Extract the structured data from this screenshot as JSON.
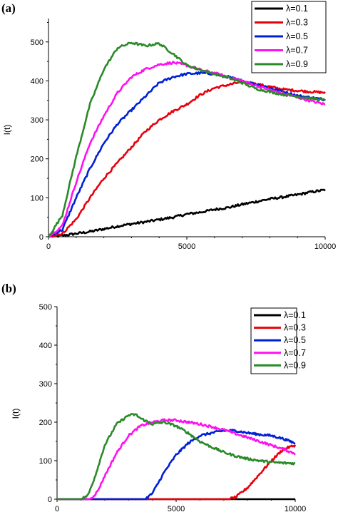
{
  "chart_data": [
    {
      "panel_label": "(a)",
      "type": "line",
      "ylabel": "I(t)",
      "xlim": [
        0,
        10000
      ],
      "ylim": [
        0,
        560
      ],
      "x_ticks": [
        0,
        5000,
        10000
      ],
      "y_ticks": [
        0,
        100,
        200,
        300,
        400,
        500
      ],
      "legend_position": "top-right",
      "series": [
        {
          "name": "λ=0.1",
          "color": "#000000",
          "x": [
            0,
            500,
            1000,
            1500,
            2000,
            2500,
            3000,
            3500,
            4000,
            4500,
            5000,
            5500,
            6000,
            6500,
            7000,
            7500,
            8000,
            8500,
            9000,
            9500,
            10000
          ],
          "y": [
            0,
            3,
            8,
            13,
            20,
            27,
            33,
            38,
            44,
            50,
            58,
            63,
            70,
            75,
            83,
            90,
            97,
            102,
            108,
            115,
            120
          ]
        },
        {
          "name": "λ=0.3",
          "color": "#e8000b",
          "x": [
            0,
            500,
            1000,
            1500,
            2000,
            2500,
            3000,
            3500,
            4000,
            4500,
            5000,
            5500,
            6000,
            6500,
            7000,
            7500,
            8000,
            8500,
            9000,
            9500,
            10000
          ],
          "y": [
            0,
            8,
            45,
            100,
            150,
            190,
            230,
            270,
            300,
            322,
            340,
            365,
            382,
            390,
            398,
            392,
            385,
            378,
            375,
            372,
            370
          ]
        },
        {
          "name": "λ=0.5",
          "color": "#0020d6",
          "x": [
            0,
            500,
            1000,
            1500,
            2000,
            2500,
            3000,
            3500,
            4000,
            4500,
            5000,
            5500,
            6000,
            6500,
            7000,
            7500,
            8000,
            8500,
            9000,
            9500,
            10000
          ],
          "y": [
            0,
            18,
            100,
            175,
            240,
            290,
            325,
            360,
            395,
            410,
            418,
            420,
            418,
            410,
            400,
            392,
            382,
            372,
            362,
            357,
            352
          ]
        },
        {
          "name": "λ=0.7",
          "color": "#ff10f0",
          "x": [
            0,
            500,
            1000,
            1500,
            2000,
            2500,
            3000,
            3500,
            4000,
            4500,
            5000,
            5500,
            6000,
            6500,
            7000,
            7500,
            8000,
            8500,
            9000,
            9500,
            10000
          ],
          "y": [
            0,
            28,
            140,
            240,
            310,
            370,
            410,
            430,
            442,
            447,
            440,
            428,
            420,
            410,
            400,
            388,
            377,
            367,
            358,
            348,
            340
          ]
        },
        {
          "name": "λ=0.9",
          "color": "#2a8a2a",
          "x": [
            0,
            500,
            1000,
            1500,
            2000,
            2500,
            3000,
            3500,
            4000,
            4500,
            5000,
            5500,
            6000,
            6500,
            7000,
            7500,
            8000,
            8500,
            9000,
            9500,
            10000
          ],
          "y": [
            0,
            55,
            205,
            340,
            430,
            485,
            498,
            490,
            496,
            470,
            440,
            428,
            418,
            408,
            395,
            380,
            372,
            365,
            360,
            355,
            350
          ]
        }
      ]
    },
    {
      "panel_label": "(b)",
      "type": "line",
      "ylabel": "I(t)",
      "xlim": [
        0,
        10000
      ],
      "ylim": [
        0,
        500
      ],
      "x_ticks": [
        0,
        5000,
        10000
      ],
      "y_ticks": [
        0,
        100,
        200,
        300,
        400,
        500
      ],
      "legend_position": "top-right",
      "series": [
        {
          "name": "λ=0.1",
          "color": "#000000",
          "x": [
            0,
            10000
          ],
          "y": [
            0,
            0
          ]
        },
        {
          "name": "λ=0.3",
          "color": "#e8000b",
          "x": [
            0,
            7200,
            7500,
            8000,
            8500,
            9000,
            9500,
            10000
          ],
          "y": [
            0,
            0,
            5,
            30,
            65,
            100,
            130,
            140
          ]
        },
        {
          "name": "λ=0.5",
          "color": "#0020d6",
          "x": [
            0,
            3700,
            4000,
            4500,
            5000,
            5500,
            6000,
            6500,
            7000,
            7500,
            8000,
            8500,
            9000,
            9500,
            10000
          ],
          "y": [
            0,
            0,
            15,
            70,
            115,
            145,
            165,
            172,
            178,
            178,
            172,
            168,
            165,
            157,
            145
          ]
        },
        {
          "name": "λ=0.7",
          "color": "#ff10f0",
          "x": [
            0,
            1400,
            1700,
            2000,
            2500,
            3000,
            3500,
            4000,
            4500,
            5000,
            5500,
            6000,
            6500,
            7000,
            7500,
            8000,
            8500,
            9000,
            9500,
            10000
          ],
          "y": [
            0,
            0,
            20,
            60,
            120,
            165,
            190,
            200,
            205,
            205,
            200,
            195,
            188,
            180,
            170,
            160,
            150,
            140,
            130,
            118
          ]
        },
        {
          "name": "λ=0.9",
          "color": "#2a8a2a",
          "x": [
            0,
            1000,
            1300,
            1600,
            2000,
            2500,
            3000,
            3300,
            3500,
            4000,
            4500,
            5000,
            5500,
            6000,
            6500,
            7000,
            7500,
            8000,
            8500,
            9000,
            9500,
            10000
          ],
          "y": [
            0,
            0,
            10,
            60,
            140,
            195,
            218,
            220,
            210,
            195,
            200,
            190,
            172,
            150,
            135,
            122,
            112,
            105,
            100,
            96,
            94,
            93
          ]
        }
      ]
    }
  ]
}
